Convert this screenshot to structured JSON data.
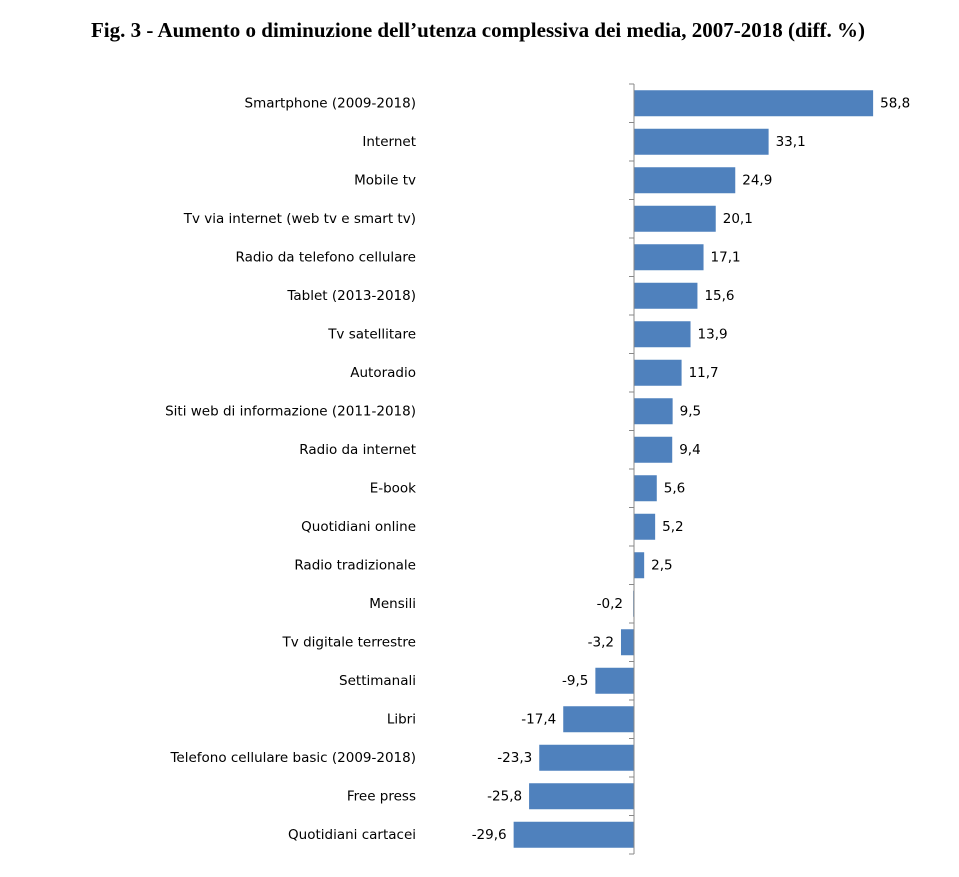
{
  "chart_data": {
    "type": "bar",
    "orientation": "horizontal",
    "title": "Fig. 3 - Aumento o diminuzione dell’utenza complessiva dei media, 2007-2018 (diff. %)",
    "categories": [
      "Smartphone (2009-2018)",
      "Internet",
      "Mobile tv",
      "Tv via internet (web tv e smart tv)",
      "Radio da telefono cellulare",
      "Tablet (2013-2018)",
      "Tv satellitare",
      "Autoradio",
      "Siti web di informazione (2011-2018)",
      "Radio da internet",
      "E-book",
      "Quotidiani online",
      "Radio tradizionale",
      "Mensili",
      "Tv digitale terrestre",
      "Settimanali",
      "Libri",
      "Telefono cellulare basic (2009-2018)",
      "Free press",
      "Quotidiani cartacei"
    ],
    "values": [
      58.8,
      33.1,
      24.9,
      20.1,
      17.1,
      15.6,
      13.9,
      11.7,
      9.5,
      9.4,
      5.6,
      5.2,
      2.5,
      -0.2,
      -3.2,
      -9.5,
      -17.4,
      -23.3,
      -25.8,
      -29.6
    ],
    "value_labels": [
      "58,8",
      "33,1",
      "24,9",
      "20,1",
      "17,1",
      "15,6",
      "13,9",
      "11,7",
      "9,5",
      "9,4",
      "5,6",
      "5,2",
      "2,5",
      "-0,2",
      "-3,2",
      "-9,5",
      "-17,4",
      "-23,3",
      "-25,8",
      "-29,6"
    ],
    "color": "#4f81bd",
    "xlim": [
      -30,
      60
    ]
  }
}
